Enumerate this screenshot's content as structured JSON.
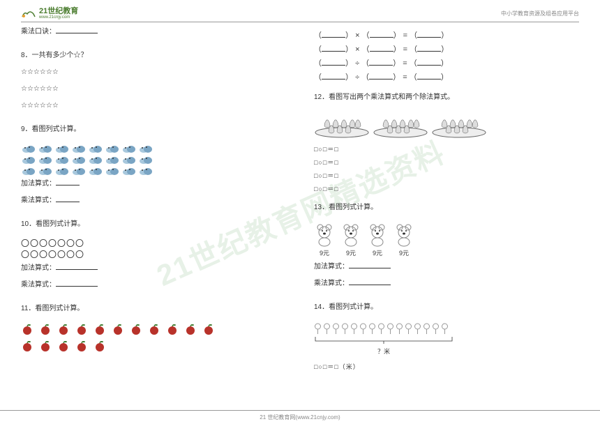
{
  "header": {
    "logo_main": "21世纪教育",
    "logo_sub": "www.21cnjy.com",
    "right": "中小学教育资源及组卷应用平台"
  },
  "col1": {
    "mul_label": "乘法口诀：",
    "q8": {
      "title": "8．一共有多少个☆？",
      "stars": "☆☆☆☆☆☆"
    },
    "q9": {
      "title": "9．看图列式计算。",
      "add": "加法算式：",
      "mul": "乘法算式："
    },
    "q10": {
      "title": "10．看图列式计算。",
      "row1": "〇〇〇〇〇〇〇",
      "row2": "〇〇〇〇〇〇〇",
      "add": "加法算式：",
      "mul": "乘法算式："
    },
    "q11": {
      "title": "11．看图列式计算。"
    }
  },
  "col2": {
    "ops": [
      "×",
      "×",
      "÷",
      "÷"
    ],
    "eq": "=",
    "q12": {
      "title": "12．看图写出两个乘法算式和两个除法算式。",
      "l1": "□○□＝□",
      "l2": "□○□＝□",
      "l3": "□○□＝□",
      "l4": "□○□＝□"
    },
    "q13": {
      "title": "13．看图列式计算。",
      "price": "9元",
      "add": "加法算式：",
      "mul": "乘法算式："
    },
    "q14": {
      "title": "14．看图列式计算。",
      "qmark": "？米",
      "expr": "□○□＝□（米）"
    }
  },
  "footer": "21 世纪教育网(www.21cnjy.com)",
  "watermark": "21世纪教育网精选资料",
  "colors": {
    "cloud": "#7aa5c4",
    "cloud2": "#a8c8dd",
    "apple": "#b8322a",
    "leaf": "#3e7a2e",
    "plate": "#666",
    "pear": "#ddd",
    "bear": "#888",
    "lolli": "#999"
  }
}
